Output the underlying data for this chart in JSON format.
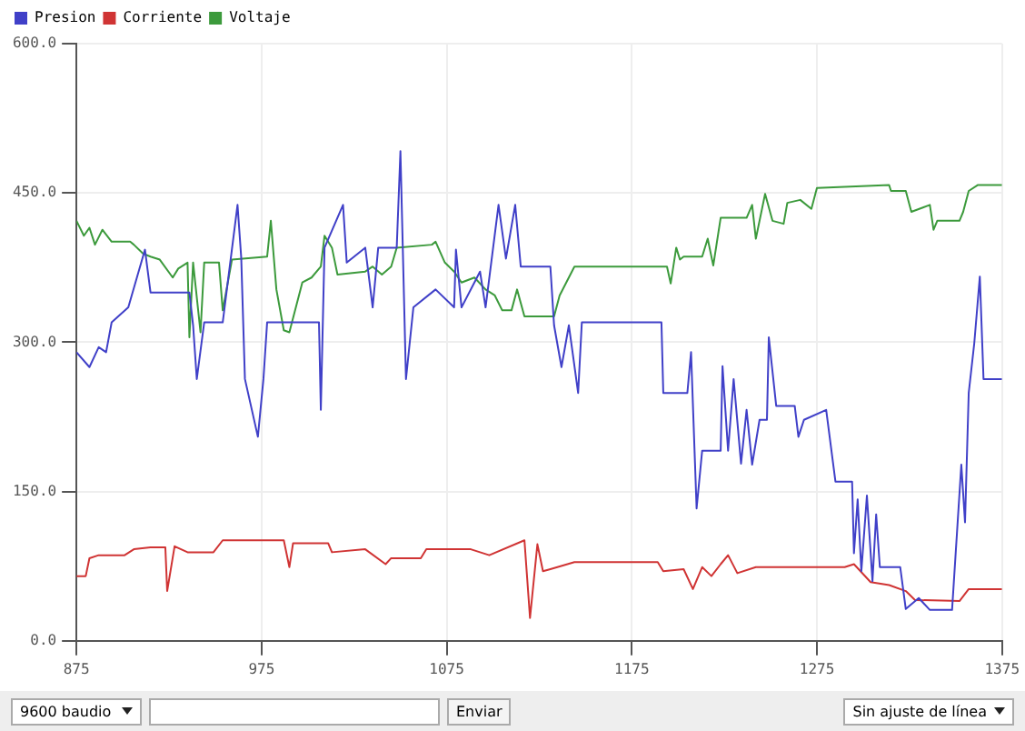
{
  "chart_data": {
    "type": "line",
    "marker": "none",
    "grid": true,
    "legend": "top left",
    "xlim": [
      875,
      1375
    ],
    "xticks": [
      875,
      975,
      1075,
      1175,
      1275,
      1375
    ],
    "ylim": [
      0,
      600
    ],
    "yticks": [
      {
        "value": 0,
        "label": "0.0"
      },
      {
        "value": 150,
        "label": "150.0"
      },
      {
        "value": 300,
        "label": "300.0"
      },
      {
        "value": 450,
        "label": "450.0"
      },
      {
        "value": 600,
        "label": "600.0"
      }
    ],
    "annotations": [
      "9600 baudio",
      "Enviar",
      "Sin ajuste de línea"
    ],
    "series": [
      {
        "name": "Presion",
        "color": "#4040c8",
        "x": [
          875,
          882,
          887,
          891,
          894,
          903,
          912,
          915,
          936,
          938,
          940,
          944,
          954,
          962,
          964,
          966,
          973,
          976,
          978,
          1006,
          1007,
          1009,
          1019,
          1021,
          1031,
          1035,
          1038,
          1048,
          1050,
          1053,
          1057,
          1069,
          1079,
          1080,
          1083,
          1093,
          1096,
          1103,
          1107,
          1112,
          1115,
          1131,
          1133,
          1137,
          1141,
          1146,
          1148,
          1191,
          1192,
          1205,
          1207,
          1210,
          1213,
          1223,
          1224,
          1227,
          1230,
          1234,
          1237,
          1240,
          1244,
          1248,
          1249,
          1253,
          1263,
          1265,
          1268,
          1280,
          1285,
          1294,
          1295,
          1297,
          1299,
          1302,
          1305,
          1307,
          1309,
          1320,
          1323,
          1330,
          1336,
          1348,
          1353,
          1355,
          1357,
          1360,
          1363,
          1365,
          1375
        ],
        "values": [
          290,
          275,
          295,
          290,
          320,
          335,
          393,
          350,
          350,
          317,
          263,
          320,
          320,
          438,
          385,
          263,
          205,
          263,
          320,
          320,
          232,
          395,
          438,
          380,
          395,
          335,
          395,
          395,
          492,
          263,
          335,
          353,
          335,
          393,
          335,
          371,
          335,
          438,
          384,
          438,
          376,
          376,
          317,
          275,
          317,
          249,
          320,
          320,
          249,
          249,
          290,
          133,
          191,
          191,
          276,
          191,
          263,
          178,
          232,
          177,
          222,
          222,
          305,
          236,
          236,
          205,
          222,
          232,
          160,
          160,
          88,
          142,
          70,
          146,
          60,
          127,
          74,
          74,
          32,
          43,
          31,
          31,
          177,
          119,
          249,
          299,
          366,
          263,
          263
        ]
      },
      {
        "name": "Corriente",
        "color": "#d03434",
        "x": [
          875,
          880,
          882,
          887,
          901,
          906,
          915,
          923,
          924,
          928,
          935,
          949,
          954,
          987,
          990,
          992,
          1011,
          1013,
          1031,
          1042,
          1045,
          1061,
          1064,
          1088,
          1098,
          1117,
          1120,
          1124,
          1127,
          1131,
          1144,
          1189,
          1192,
          1203,
          1208,
          1213,
          1218,
          1223,
          1227,
          1232,
          1242,
          1290,
          1295,
          1304,
          1314,
          1323,
          1328,
          1352,
          1357,
          1375
        ],
        "values": [
          65,
          65,
          83,
          86,
          86,
          92,
          94,
          94,
          50,
          95,
          89,
          89,
          101,
          101,
          74,
          98,
          98,
          89,
          92,
          77,
          83,
          83,
          92,
          92,
          86,
          101,
          23,
          97,
          70,
          72,
          79,
          79,
          70,
          72,
          52,
          74,
          65,
          77,
          86,
          68,
          74,
          74,
          77,
          59,
          56,
          50,
          41,
          40,
          52,
          52
        ]
      },
      {
        "name": "Voltaje",
        "color": "#3c9a3c",
        "x": [
          875,
          879,
          882,
          885,
          889,
          894,
          904,
          906,
          911,
          915,
          920,
          927,
          930,
          935,
          936,
          938,
          942,
          944,
          952,
          954,
          959,
          978,
          980,
          983,
          987,
          990,
          997,
          1002,
          1007,
          1009,
          1013,
          1016,
          1031,
          1035,
          1040,
          1045,
          1048,
          1067,
          1069,
          1074,
          1079,
          1083,
          1090,
          1096,
          1101,
          1105,
          1110,
          1113,
          1117,
          1133,
          1136,
          1144,
          1194,
          1196,
          1199,
          1201,
          1203,
          1213,
          1216,
          1219,
          1223,
          1237,
          1240,
          1242,
          1247,
          1251,
          1257,
          1259,
          1266,
          1272,
          1275,
          1314,
          1315,
          1323,
          1326,
          1336,
          1338,
          1340,
          1352,
          1354,
          1357,
          1362,
          1375
        ],
        "values": [
          422,
          407,
          415,
          398,
          413,
          401,
          401,
          398,
          389,
          386,
          383,
          365,
          374,
          380,
          305,
          380,
          310,
          380,
          380,
          332,
          383,
          386,
          422,
          353,
          312,
          310,
          360,
          365,
          376,
          407,
          395,
          368,
          371,
          376,
          368,
          376,
          395,
          398,
          401,
          380,
          371,
          360,
          365,
          353,
          347,
          332,
          332,
          353,
          326,
          326,
          347,
          376,
          376,
          359,
          395,
          383,
          386,
          386,
          404,
          377,
          425,
          425,
          438,
          404,
          449,
          422,
          419,
          440,
          443,
          434,
          455,
          458,
          452,
          452,
          431,
          438,
          413,
          422,
          422,
          431,
          452,
          458,
          458
        ]
      }
    ]
  }
}
